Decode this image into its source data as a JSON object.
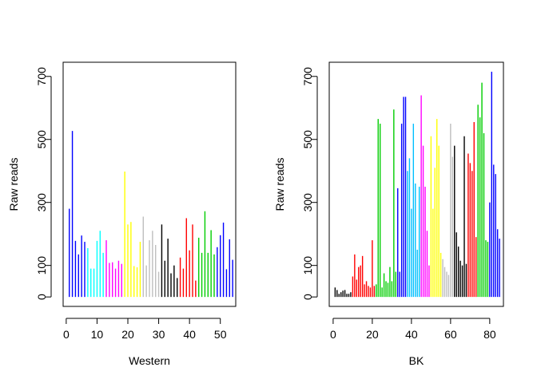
{
  "chart_data": [
    {
      "type": "bar",
      "xlabel": "Western",
      "ylabel": "Raw reads",
      "xlim": [
        -1,
        55
      ],
      "ylim": [
        -30,
        745
      ],
      "xticks": [
        0,
        10,
        20,
        30,
        40,
        50
      ],
      "yticks": [
        0,
        100,
        300,
        500,
        700
      ],
      "grid": false,
      "legend": "none",
      "series": [
        {
          "color": "#0000ff",
          "x": [
            1,
            2,
            3,
            4,
            5,
            6
          ],
          "values": [
            280,
            527,
            178,
            135,
            195,
            175
          ]
        },
        {
          "color": "#00ffff",
          "x": [
            7,
            8,
            9,
            10,
            11,
            12
          ],
          "values": [
            155,
            90,
            90,
            178,
            210,
            140
          ]
        },
        {
          "color": "#ff00ff",
          "x": [
            13,
            14,
            15,
            16,
            17,
            18
          ],
          "values": [
            180,
            108,
            110,
            90,
            115,
            105
          ]
        },
        {
          "color": "#ffff00",
          "x": [
            19,
            20,
            21,
            22,
            23,
            24
          ],
          "values": [
            398,
            230,
            238,
            98,
            94,
            175
          ]
        },
        {
          "color": "#bebebe",
          "x": [
            25,
            26,
            27,
            28,
            29,
            30
          ],
          "values": [
            255,
            100,
            180,
            210,
            165,
            80
          ]
        },
        {
          "color": "#000000",
          "x": [
            31,
            32,
            33,
            34,
            35,
            36
          ],
          "values": [
            230,
            115,
            185,
            75,
            100,
            60
          ]
        },
        {
          "color": "#ff0000",
          "x": [
            37,
            38,
            39,
            40,
            41,
            42
          ],
          "values": [
            125,
            90,
            250,
            148,
            230,
            52
          ]
        },
        {
          "color": "#00cd00",
          "x": [
            43,
            44,
            45,
            46,
            47,
            48
          ],
          "values": [
            188,
            140,
            272,
            140,
            212,
            135
          ]
        },
        {
          "color": "#0000ff",
          "x": [
            49,
            50,
            51,
            52,
            53,
            54
          ],
          "values": [
            158,
            196,
            236,
            88,
            183,
            118
          ]
        }
      ]
    },
    {
      "type": "bar",
      "xlabel": "BK",
      "ylabel": "Raw reads",
      "xlim": [
        -2,
        87
      ],
      "ylim": [
        -30,
        745
      ],
      "xticks": [
        0,
        20,
        40,
        60,
        80
      ],
      "yticks": [
        0,
        100,
        300,
        500,
        700
      ],
      "grid": false,
      "legend": "none",
      "series": [
        {
          "color": "#000000",
          "x": [
            1,
            2,
            3,
            4,
            5,
            6,
            7,
            8,
            9
          ],
          "values": [
            30,
            22,
            10,
            15,
            20,
            22,
            10,
            10,
            15
          ]
        },
        {
          "color": "#ff0000",
          "x": [
            10,
            11,
            12,
            13,
            14,
            15,
            16,
            17,
            18,
            19,
            20,
            21
          ],
          "values": [
            65,
            135,
            55,
            95,
            100,
            130,
            40,
            50,
            35,
            30,
            180,
            35
          ]
        },
        {
          "color": "#00cd00",
          "x": [
            22,
            23,
            24,
            25,
            26,
            27,
            28,
            29,
            30,
            31,
            32
          ],
          "values": [
            40,
            565,
            550,
            30,
            75,
            50,
            45,
            95,
            50,
            595,
            80
          ]
        },
        {
          "color": "#0000ff",
          "x": [
            33,
            34,
            35,
            36,
            37
          ],
          "values": [
            345,
            80,
            550,
            635,
            635
          ]
        },
        {
          "color": "#00bfff",
          "x": [
            38,
            39,
            40,
            41,
            42,
            43,
            44
          ],
          "values": [
            400,
            440,
            280,
            550,
            360,
            150,
            350
          ]
        },
        {
          "color": "#ff00ff",
          "x": [
            45,
            46,
            47,
            48,
            49
          ],
          "values": [
            640,
            480,
            350,
            210,
            100
          ]
        },
        {
          "color": "#ffff00",
          "x": [
            50,
            51,
            52,
            53,
            54,
            55
          ],
          "values": [
            510,
            280,
            410,
            565,
            480,
            140
          ]
        },
        {
          "color": "#bebebe",
          "x": [
            56,
            57,
            58,
            59,
            60,
            61
          ],
          "values": [
            120,
            95,
            80,
            70,
            550,
            445
          ]
        },
        {
          "color": "#000000",
          "x": [
            62,
            63,
            64,
            65,
            66,
            67,
            68
          ],
          "values": [
            480,
            205,
            160,
            115,
            100,
            510,
            105
          ]
        },
        {
          "color": "#ff0000",
          "x": [
            69,
            70,
            71,
            72,
            73
          ],
          "values": [
            455,
            425,
            400,
            555,
            190
          ]
        },
        {
          "color": "#00cd00",
          "x": [
            74,
            75,
            76,
            77,
            78,
            79
          ],
          "values": [
            610,
            570,
            680,
            520,
            180,
            175
          ]
        },
        {
          "color": "#0000ff",
          "x": [
            80,
            81,
            82,
            83,
            84,
            85
          ],
          "values": [
            300,
            715,
            420,
            390,
            215,
            185
          ]
        }
      ]
    }
  ]
}
